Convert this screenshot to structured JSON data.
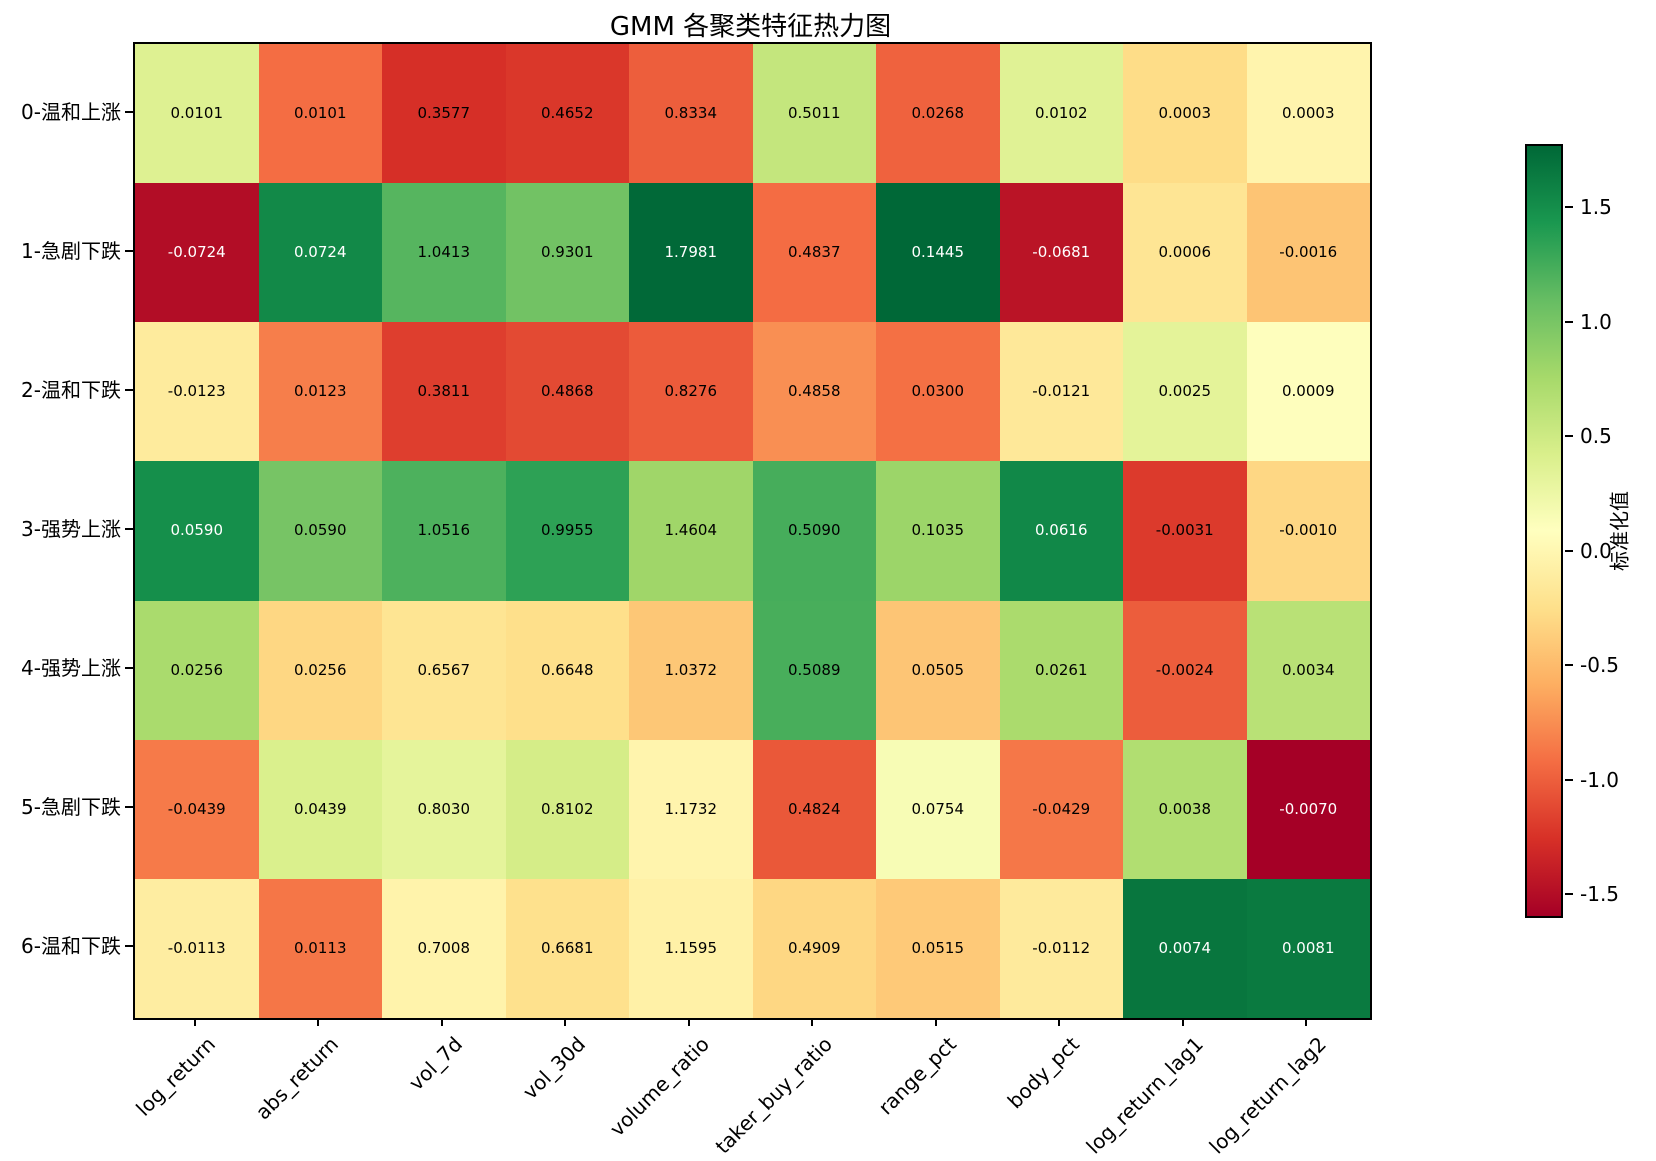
{
  "title": "GMM 各聚类特征热力图",
  "chart_data": {
    "type": "heatmap",
    "title": "GMM 各聚类特征热力图",
    "rows": [
      "0-温和上涨",
      "1-急剧下跌",
      "2-温和下跌",
      "3-强势上涨",
      "4-强势上涨",
      "5-急剧下跌",
      "6-温和下跌"
    ],
    "columns": [
      "log_return",
      "abs_return",
      "vol_7d",
      "vol_30d",
      "volume_ratio",
      "taker_buy_ratio",
      "range_pct",
      "body_pct",
      "log_return_lag1",
      "log_return_lag2"
    ],
    "values": [
      [
        0.0101,
        0.0101,
        0.3577,
        0.4652,
        0.8334,
        0.5011,
        0.0268,
        0.0102,
        0.0003,
        0.0003
      ],
      [
        -0.0724,
        0.0724,
        1.0413,
        0.9301,
        1.7981,
        0.4837,
        0.1445,
        -0.0681,
        0.0006,
        -0.0016
      ],
      [
        -0.0123,
        0.0123,
        0.3811,
        0.4868,
        0.8276,
        0.4858,
        0.03,
        -0.0121,
        0.0025,
        0.0009
      ],
      [
        0.059,
        0.059,
        1.0516,
        0.9955,
        1.4604,
        0.509,
        0.1035,
        0.0616,
        -0.0031,
        -0.001
      ],
      [
        0.0256,
        0.0256,
        0.6567,
        0.6648,
        1.0372,
        0.5089,
        0.0505,
        0.0261,
        -0.0024,
        0.0034
      ],
      [
        -0.0439,
        0.0439,
        0.803,
        0.8102,
        1.1732,
        0.4824,
        0.0754,
        -0.0429,
        0.0038,
        -0.007
      ],
      [
        -0.0113,
        0.0113,
        0.7008,
        0.6681,
        1.1595,
        0.4909,
        0.0515,
        -0.0112,
        0.0074,
        0.0081
      ]
    ],
    "value_decimals": 4,
    "color_scale": {
      "mode": "per-column z-score, sample std (ddof=1); colors span global z min..max",
      "colormap": "RdYlGn",
      "colormap_stops": [
        "#a50026",
        "#d73027",
        "#f46d43",
        "#fdae61",
        "#fee08b",
        "#ffffbf",
        "#d9ef8b",
        "#a6d96a",
        "#66bd63",
        "#1a9850",
        "#006837"
      ],
      "white_text_abs_z_threshold": 1.4,
      "annotation_color_dark": "#000000",
      "annotation_color_light": "#ffffff"
    },
    "colorbar": {
      "label": "标准化值",
      "tick_values": [
        1.5,
        1.0,
        0.5,
        0.0,
        -0.5,
        -1.0,
        -1.5
      ],
      "tick_labels": [
        "1.5",
        "1.0",
        "0.5",
        "0.0",
        "-0.5",
        "-1.0",
        "-1.5"
      ]
    },
    "grid": false,
    "legend_position": "right-colorbar"
  }
}
